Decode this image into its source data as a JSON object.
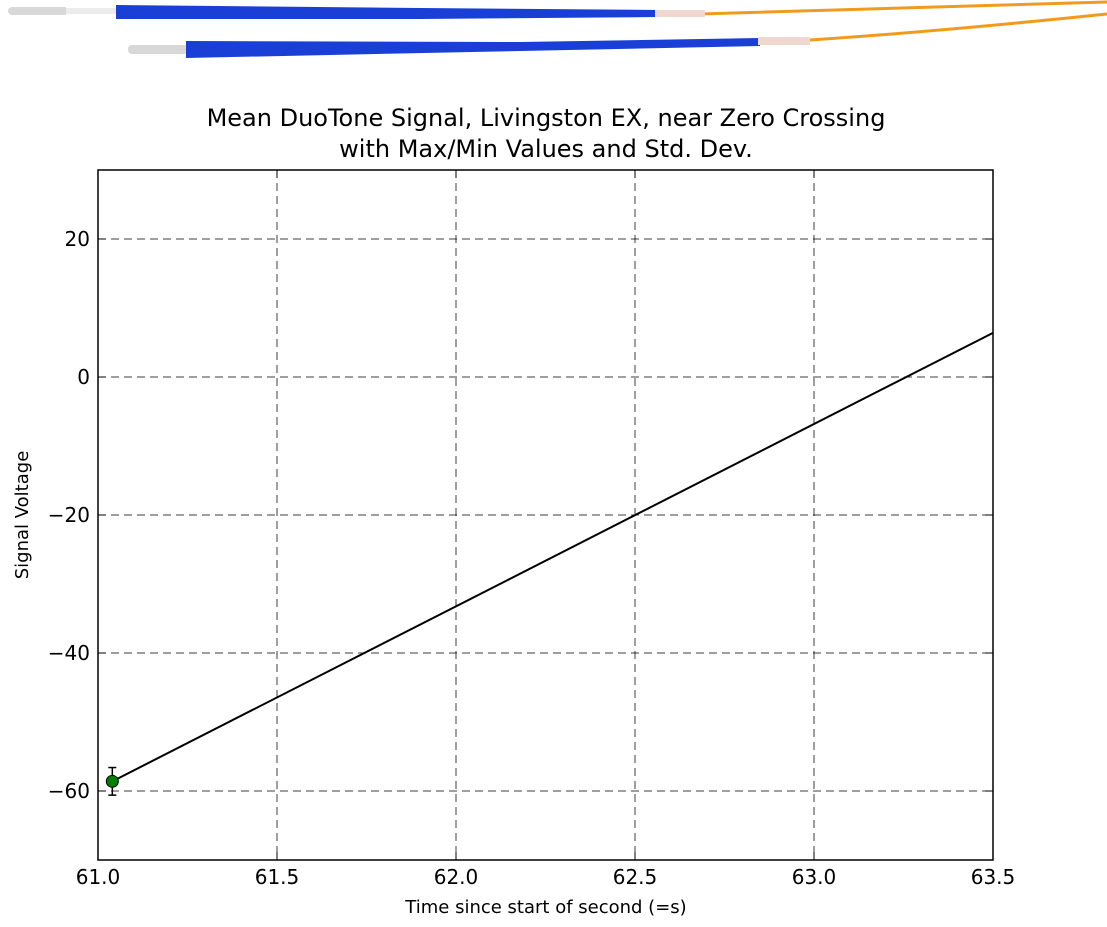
{
  "chart_data": {
    "type": "line",
    "title": [
      "Mean DuoTone Signal, Livingston EX, near Zero Crossing",
      "with Max/Min Values and Std. Dev."
    ],
    "xlabel": "Time since start of second (=s)",
    "ylabel": "Signal Voltage",
    "xlim": [
      61.0,
      63.5
    ],
    "ylim": [
      -70,
      30
    ],
    "xticks": [
      {
        "value": 61.0,
        "label": "61.0"
      },
      61.5,
      {
        "value": 62.0,
        "label": "62.0"
      },
      62.5,
      {
        "value": 63.0,
        "label": "63.0"
      },
      63.5
    ],
    "yticks": [
      {
        "value": -60,
        "label": "−60"
      },
      {
        "value": -40,
        "label": "−40"
      },
      {
        "value": -20,
        "label": "−20"
      },
      0,
      20
    ],
    "grid": true,
    "series": [
      {
        "style": "line",
        "color": "#000000",
        "x": [
          61.04,
          63.5
        ],
        "values": [
          -58.6,
          6.4
        ]
      },
      {
        "style": "errorbar",
        "color": "#007f00",
        "x": [
          61.04
        ],
        "values": [
          -58.6
        ],
        "errors": [
          2
        ]
      }
    ]
  }
}
